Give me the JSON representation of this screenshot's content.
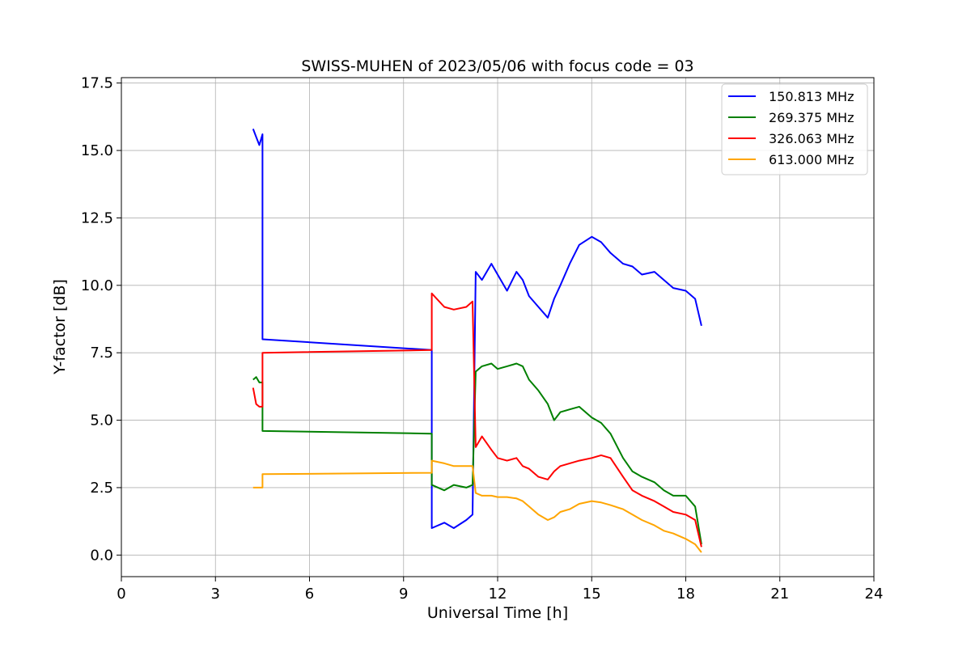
{
  "chart_data": {
    "type": "line",
    "title": "SWISS-MUHEN of 2023/05/06 with focus code = 03",
    "xlabel": "Universal Time [h]",
    "ylabel": "Y-factor [dB]",
    "xlim": [
      0,
      24
    ],
    "ylim": [
      -0.8,
      17.7
    ],
    "xticks": [
      0,
      3,
      6,
      9,
      12,
      15,
      18,
      21,
      24
    ],
    "yticks": [
      0.0,
      2.5,
      5.0,
      7.5,
      10.0,
      12.5,
      15.0,
      17.5
    ],
    "xtick_labels": [
      "0",
      "3",
      "6",
      "9",
      "12",
      "15",
      "18",
      "21",
      "24"
    ],
    "ytick_labels": [
      "0.0",
      "2.5",
      "5.0",
      "7.5",
      "10.0",
      "12.5",
      "15.0",
      "17.5"
    ],
    "grid": true,
    "legend_position": "top-right",
    "series": [
      {
        "name": "150.813 MHz",
        "color": "#0000ff",
        "x": [
          4.2,
          4.3,
          4.4,
          4.5,
          4.5,
          9.9,
          9.9,
          10.3,
          10.6,
          11.0,
          11.2,
          11.3,
          11.5,
          11.8,
          12.0,
          12.3,
          12.6,
          12.8,
          13.0,
          13.3,
          13.6,
          13.8,
          14.0,
          14.3,
          14.6,
          15.0,
          15.3,
          15.6,
          16.0,
          16.3,
          16.6,
          17.0,
          17.3,
          17.6,
          18.0,
          18.3,
          18.5
        ],
        "y": [
          15.8,
          15.5,
          15.2,
          15.6,
          8.0,
          7.6,
          1.0,
          1.2,
          1.0,
          1.3,
          1.5,
          10.5,
          10.2,
          10.8,
          10.4,
          9.8,
          10.5,
          10.2,
          9.6,
          9.2,
          8.8,
          9.5,
          10.0,
          10.8,
          11.5,
          11.8,
          11.6,
          11.2,
          10.8,
          10.7,
          10.4,
          10.5,
          10.2,
          9.9,
          9.8,
          9.5,
          8.5
        ]
      },
      {
        "name": "269.375 MHz",
        "color": "#008000",
        "x": [
          4.2,
          4.3,
          4.4,
          4.5,
          4.5,
          9.9,
          9.9,
          10.3,
          10.6,
          11.0,
          11.2,
          11.3,
          11.5,
          11.8,
          12.0,
          12.3,
          12.6,
          12.8,
          13.0,
          13.3,
          13.6,
          13.8,
          14.0,
          14.3,
          14.6,
          15.0,
          15.3,
          15.6,
          16.0,
          16.3,
          16.6,
          17.0,
          17.3,
          17.6,
          18.0,
          18.3,
          18.5
        ],
        "y": [
          6.5,
          6.6,
          6.4,
          6.4,
          4.6,
          4.5,
          2.6,
          2.4,
          2.6,
          2.5,
          2.6,
          6.8,
          7.0,
          7.1,
          6.9,
          7.0,
          7.1,
          7.0,
          6.5,
          6.1,
          5.6,
          5.0,
          5.3,
          5.4,
          5.5,
          5.1,
          4.9,
          4.5,
          3.6,
          3.1,
          2.9,
          2.7,
          2.4,
          2.2,
          2.2,
          1.8,
          0.4
        ]
      },
      {
        "name": "326.063 MHz",
        "color": "#ff0000",
        "x": [
          4.2,
          4.3,
          4.4,
          4.5,
          4.5,
          9.9,
          9.9,
          10.3,
          10.6,
          11.0,
          11.2,
          11.3,
          11.5,
          11.8,
          12.0,
          12.3,
          12.6,
          12.8,
          13.0,
          13.3,
          13.6,
          13.8,
          14.0,
          14.3,
          14.6,
          15.0,
          15.3,
          15.6,
          16.0,
          16.3,
          16.6,
          17.0,
          17.3,
          17.6,
          18.0,
          18.3,
          18.5
        ],
        "y": [
          6.2,
          5.6,
          5.5,
          5.5,
          7.5,
          7.6,
          9.7,
          9.2,
          9.1,
          9.2,
          9.4,
          4.0,
          4.4,
          3.9,
          3.6,
          3.5,
          3.6,
          3.3,
          3.2,
          2.9,
          2.8,
          3.1,
          3.3,
          3.4,
          3.5,
          3.6,
          3.7,
          3.6,
          2.9,
          2.4,
          2.2,
          2.0,
          1.8,
          1.6,
          1.5,
          1.3,
          0.3
        ]
      },
      {
        "name": "613.000 MHz",
        "color": "#ffa500",
        "x": [
          4.2,
          4.3,
          4.4,
          4.5,
          4.5,
          9.9,
          9.9,
          10.3,
          10.6,
          11.0,
          11.2,
          11.3,
          11.5,
          11.8,
          12.0,
          12.3,
          12.6,
          12.8,
          13.0,
          13.3,
          13.6,
          13.8,
          14.0,
          14.3,
          14.6,
          15.0,
          15.3,
          15.6,
          16.0,
          16.3,
          16.6,
          17.0,
          17.3,
          17.6,
          18.0,
          18.3,
          18.5
        ],
        "y": [
          2.5,
          2.5,
          2.5,
          2.5,
          3.0,
          3.05,
          3.5,
          3.4,
          3.3,
          3.3,
          3.3,
          2.3,
          2.2,
          2.2,
          2.15,
          2.15,
          2.1,
          2.0,
          1.8,
          1.5,
          1.3,
          1.4,
          1.6,
          1.7,
          1.9,
          2.0,
          1.95,
          1.85,
          1.7,
          1.5,
          1.3,
          1.1,
          0.9,
          0.8,
          0.6,
          0.4,
          0.1
        ]
      }
    ]
  }
}
